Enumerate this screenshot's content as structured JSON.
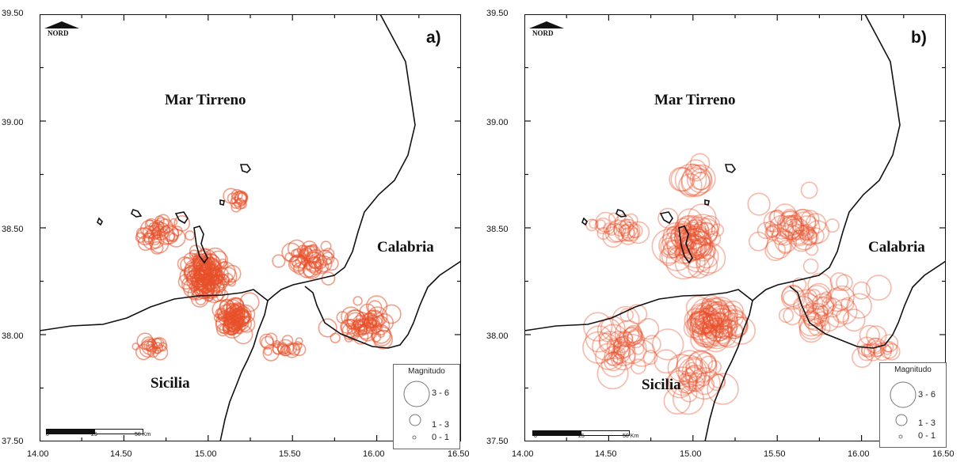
{
  "panels": [
    {
      "id": "a",
      "label": "a)",
      "north": "NORD",
      "sea_label": "Mar Tirreno",
      "regions": [
        "Sicilia",
        "Calabria"
      ],
      "y_ticks": [
        "39.50",
        "39.00",
        "38.50",
        "38.00",
        "37.50"
      ],
      "x_ticks": [
        "14.00",
        "14.50",
        "15.00",
        "15.50",
        "16.00",
        "16.50"
      ],
      "scale": [
        "0",
        "25",
        "50 Km"
      ],
      "legend": {
        "title": "Magnitudo",
        "classes": [
          "3 - 6",
          "1 - 3",
          "0 - 1"
        ]
      }
    },
    {
      "id": "b",
      "label": "b)",
      "north": "NORD",
      "sea_label": "Mar Tirreno",
      "regions": [
        "Sicilia",
        "Calabria"
      ],
      "y_ticks": [
        "39.50",
        "39.00",
        "38.50",
        "38.00",
        "37.50"
      ],
      "x_ticks": [
        "14.00",
        "14.50",
        "15.00",
        "15.50",
        "16.00",
        "16.50"
      ],
      "scale": [
        "0",
        "25",
        "50 Km"
      ],
      "legend": {
        "title": "Magnitudo",
        "classes": [
          "3 - 6",
          "1 - 3",
          "0 - 1"
        ]
      }
    }
  ],
  "colors": {
    "event": "#e8502a",
    "coast": "#111111"
  }
}
